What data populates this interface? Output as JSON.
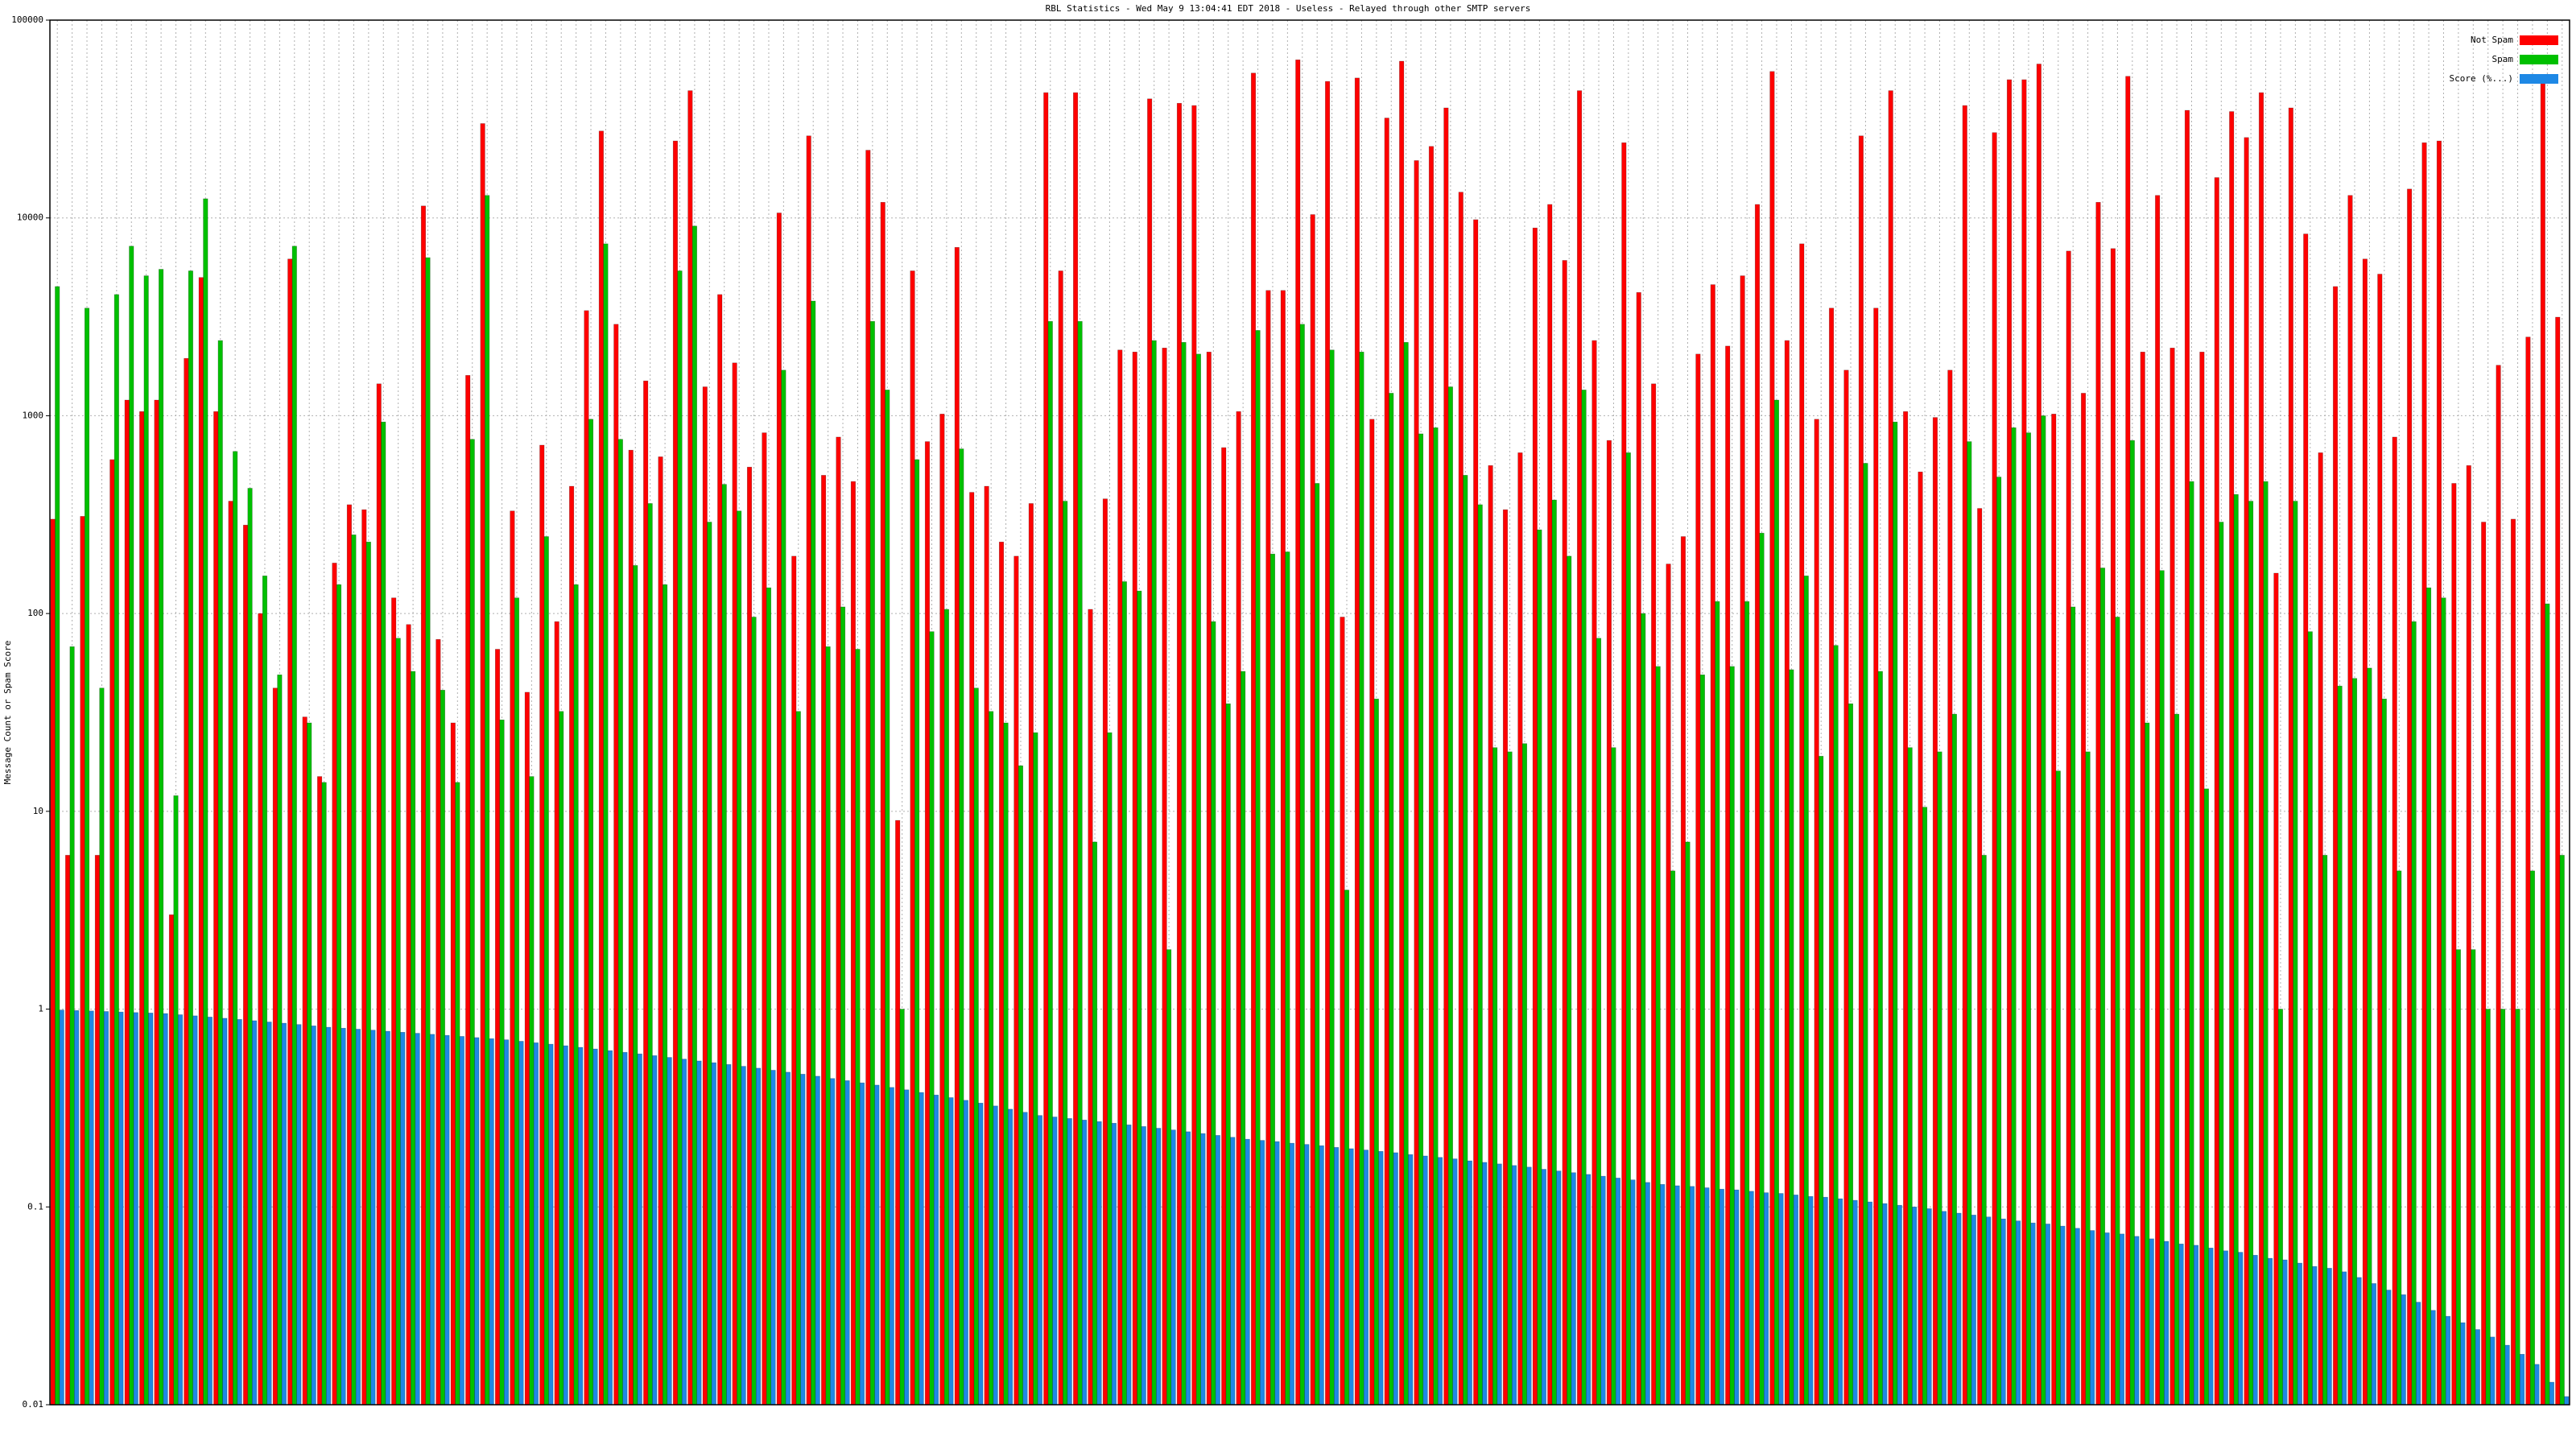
{
  "chart_data": {
    "type": "bar",
    "title": "RBL Statistics - Wed May  9 13:04:41 EDT 2018 - Useless - Relayed through other SMTP servers",
    "ylabel": "Message Count or Spam Score",
    "log_y": true,
    "grid": true,
    "legend": "upper right",
    "ylim": [
      0.01,
      100000
    ],
    "yticks": [
      0.01,
      0.1,
      1,
      10,
      100,
      1000,
      10000,
      100000
    ],
    "categories": [
      null,
      null,
      null,
      null,
      null,
      null,
      null,
      null,
      null,
      null,
      null,
      null,
      null,
      null,
      null,
      null,
      null,
      null,
      null,
      null,
      null,
      null,
      null,
      null,
      null,
      null,
      null,
      null,
      null,
      null,
      null,
      null,
      null,
      null,
      null,
      null,
      null,
      null,
      null,
      null,
      null,
      null,
      null,
      null,
      null,
      null,
      null,
      null,
      null,
      null,
      null,
      null,
      null,
      null,
      null,
      null,
      null,
      null,
      null,
      null,
      null,
      null,
      null,
      null,
      null,
      null,
      null,
      null,
      null,
      null,
      null,
      null,
      null,
      null,
      null,
      null,
      null,
      null,
      null,
      null,
      null,
      null,
      null,
      null,
      null,
      null,
      null,
      null,
      null,
      null,
      null,
      null,
      null,
      null,
      null,
      null,
      null,
      null,
      null,
      null,
      null,
      null,
      null,
      null,
      null,
      null,
      null,
      null,
      null,
      null,
      null,
      null,
      null,
      null,
      null,
      null,
      null,
      null,
      null,
      null,
      null,
      null,
      null,
      null,
      null,
      null,
      null,
      null,
      null,
      null,
      null,
      null,
      null,
      null,
      null,
      null,
      null,
      null,
      null,
      null,
      null,
      null,
      null,
      null,
      null,
      null,
      null,
      null,
      null,
      null,
      null,
      null,
      null,
      null,
      null,
      null,
      null,
      null,
      null,
      null,
      null,
      null,
      null,
      null,
      null,
      null,
      null,
      null,
      null,
      null
    ],
    "series": [
      {
        "name": "Not Spam",
        "color": "#ff0000",
        "values": [
          300,
          6,
          310,
          6,
          600,
          1200,
          1050,
          1200,
          3,
          1950,
          5000,
          1050,
          370,
          280,
          100,
          42,
          6200,
          30,
          15,
          180,
          355,
          335,
          1450,
          120,
          88,
          11500,
          74,
          28,
          1600,
          30000,
          66,
          330,
          40,
          710,
          91,
          440,
          3400,
          27500,
          2900,
          670,
          1500,
          620,
          24500,
          44000,
          1400,
          4100,
          1850,
          550,
          820,
          10600,
          195,
          26000,
          500,
          780,
          465,
          22000,
          12000,
          9,
          5400,
          740,
          1020,
          7100,
          410,
          440,
          230,
          195,
          360,
          43000,
          5400,
          43000,
          105,
          380,
          2150,
          2100,
          40000,
          2200,
          38000,
          37000,
          2100,
          690,
          1050,
          54000,
          4300,
          4300,
          63000,
          10400,
          49000,
          96,
          51000,
          960,
          32000,
          62000,
          19500,
          23000,
          36000,
          13500,
          9800,
          560,
          335,
          650,
          8900,
          11700,
          6100,
          44000,
          2400,
          750,
          24000,
          4200,
          1450,
          178,
          245,
          2050,
          4600,
          2250,
          5100,
          11700,
          55000,
          2400,
          7400,
          960,
          3500,
          1700,
          26000,
          3500,
          44000,
          1050,
          520,
          980,
          1700,
          37000,
          340,
          27000,
          50000,
          50000,
          60000,
          1020,
          6800,
          1300,
          12000,
          7000,
          52000,
          2100,
          13000,
          2200,
          35000,
          2100,
          16000,
          34500,
          25500,
          43000,
          160,
          36000,
          8300,
          650,
          4500,
          13000,
          6200,
          5200,
          780,
          14000,
          24000,
          24500,
          455,
          560,
          290,
          1800,
          300,
          2500,
          52000,
          3150
        ]
      },
      {
        "name": "Spam",
        "color": "#00c000",
        "values": [
          4500,
          68,
          3500,
          42,
          4100,
          7200,
          5100,
          5500,
          12,
          5400,
          12500,
          2400,
          660,
          430,
          155,
          49,
          7200,
          28,
          14,
          140,
          250,
          230,
          930,
          75,
          51,
          6300,
          41,
          14,
          760,
          13000,
          29,
          120,
          15,
          245,
          32,
          140,
          960,
          7400,
          760,
          175,
          360,
          140,
          5400,
          9100,
          290,
          450,
          330,
          96,
          135,
          1700,
          32,
          3800,
          68,
          108,
          66,
          3000,
          1350,
          1,
          600,
          81,
          105,
          680,
          42,
          32,
          28,
          17,
          25,
          3000,
          370,
          3000,
          7,
          25,
          145,
          130,
          2400,
          2,
          2350,
          2050,
          91,
          35,
          51,
          2700,
          200,
          205,
          2900,
          455,
          2150,
          4,
          2100,
          37,
          1300,
          2350,
          810,
          870,
          1400,
          500,
          355,
          21,
          20,
          22,
          265,
          375,
          195,
          1350,
          75,
          21,
          650,
          100,
          54,
          5,
          7,
          49,
          115,
          54,
          115,
          255,
          1200,
          52,
          155,
          19,
          69,
          35,
          575,
          51,
          930,
          21,
          10.5,
          20,
          31,
          740,
          6,
          490,
          870,
          820,
          1000,
          16,
          108,
          20,
          170,
          96,
          750,
          28,
          165,
          31,
          465,
          13,
          290,
          400,
          370,
          465,
          1,
          370,
          81,
          6,
          43,
          47,
          53,
          37,
          5,
          91,
          135,
          120,
          2,
          2,
          1,
          1,
          1,
          5,
          112,
          6
        ]
      },
      {
        "name": "Score (%...)",
        "color": "#1e88e5",
        "values": [
          0.99,
          0.984,
          0.979,
          0.973,
          0.967,
          0.961,
          0.956,
          0.95,
          0.937,
          0.925,
          0.912,
          0.899,
          0.887,
          0.874,
          0.861,
          0.849,
          0.836,
          0.823,
          0.81,
          0.801,
          0.792,
          0.783,
          0.773,
          0.764,
          0.755,
          0.746,
          0.737,
          0.728,
          0.718,
          0.709,
          0.7,
          0.688,
          0.676,
          0.665,
          0.653,
          0.641,
          0.629,
          0.617,
          0.605,
          0.594,
          0.582,
          0.57,
          0.559,
          0.547,
          0.536,
          0.525,
          0.514,
          0.503,
          0.491,
          0.48,
          0.469,
          0.458,
          0.446,
          0.435,
          0.424,
          0.413,
          0.402,
          0.391,
          0.379,
          0.368,
          0.357,
          0.346,
          0.335,
          0.324,
          0.312,
          0.301,
          0.29,
          0.285,
          0.28,
          0.275,
          0.27,
          0.265,
          0.26,
          0.255,
          0.25,
          0.245,
          0.24,
          0.235,
          0.23,
          0.225,
          0.22,
          0.217,
          0.214,
          0.21,
          0.207,
          0.204,
          0.2,
          0.197,
          0.194,
          0.191,
          0.188,
          0.184,
          0.181,
          0.178,
          0.175,
          0.171,
          0.168,
          0.165,
          0.162,
          0.159,
          0.155,
          0.152,
          0.149,
          0.146,
          0.143,
          0.14,
          0.137,
          0.133,
          0.13,
          0.128,
          0.127,
          0.125,
          0.123,
          0.122,
          0.12,
          0.118,
          0.117,
          0.115,
          0.113,
          0.112,
          0.11,
          0.108,
          0.106,
          0.104,
          0.102,
          0.1,
          0.098,
          0.095,
          0.093,
          0.091,
          0.089,
          0.087,
          0.085,
          0.083,
          0.082,
          0.08,
          0.078,
          0.076,
          0.074,
          0.073,
          0.071,
          0.069,
          0.067,
          0.065,
          0.064,
          0.062,
          0.06,
          0.059,
          0.057,
          0.055,
          0.054,
          0.052,
          0.05,
          0.049,
          0.047,
          0.044,
          0.041,
          0.038,
          0.036,
          0.033,
          0.03,
          0.028,
          0.026,
          0.024,
          0.022,
          0.02,
          0.018,
          0.016,
          0.013,
          0.011
        ]
      }
    ]
  }
}
